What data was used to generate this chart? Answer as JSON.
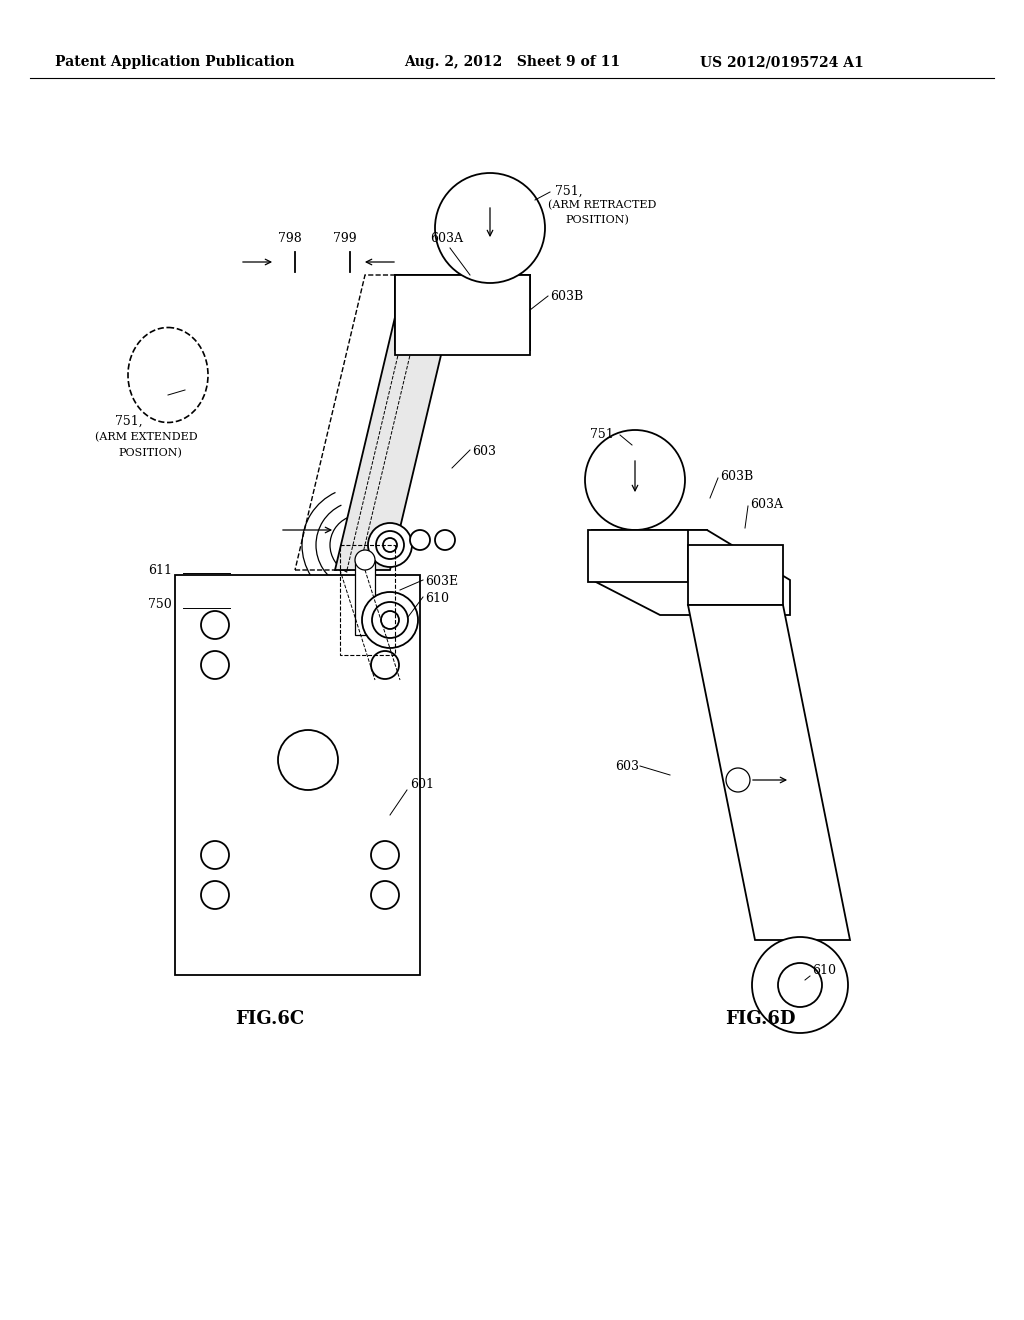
{
  "background_color": "#ffffff",
  "header_left": "Patent Application Publication",
  "header_center": "Aug. 2, 2012   Sheet 9 of 11",
  "header_right": "US 2012/0195724 A1",
  "fig6c_label": "FIG.6C",
  "fig6d_label": "FIG.6D"
}
